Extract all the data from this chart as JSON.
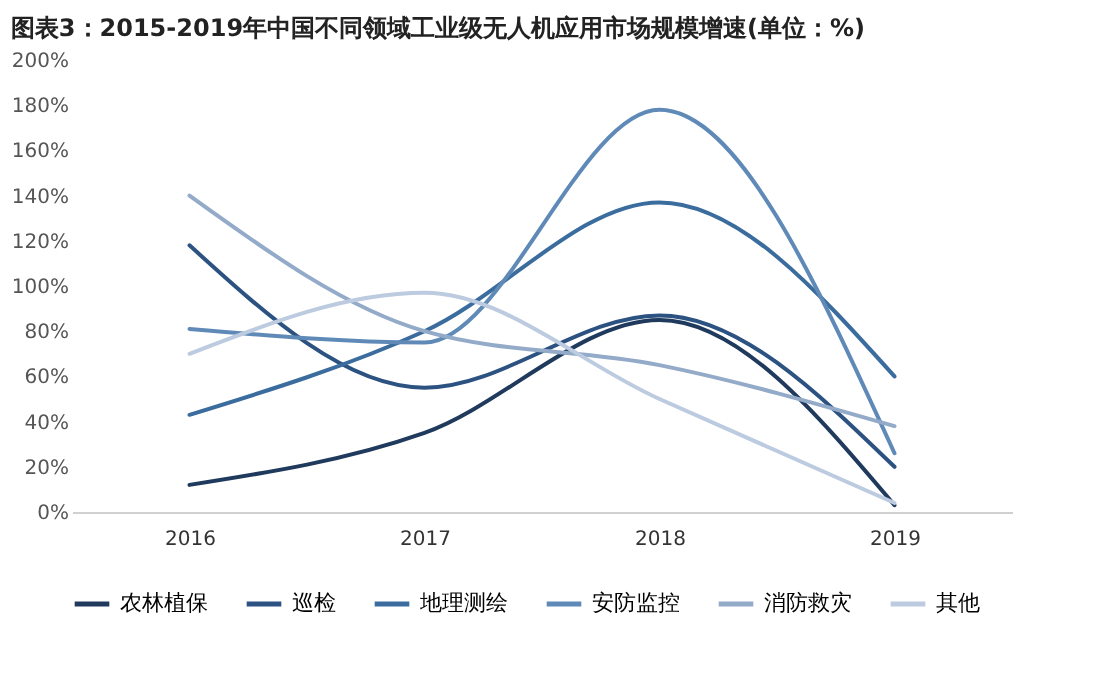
{
  "chart_data": {
    "type": "line",
    "title": "图表3：2015-2019年中国不同领域工业级无人机应用市场规模增速(单位：%)",
    "categories": [
      "2016",
      "2017",
      "2018",
      "2019"
    ],
    "series": [
      {
        "name": "农林植保",
        "color": "#1f3a5c",
        "values": [
          12,
          35,
          85,
          3
        ]
      },
      {
        "name": "巡检",
        "color": "#2c5282",
        "values": [
          118,
          55,
          87,
          20
        ]
      },
      {
        "name": "地理测绘",
        "color": "#3b6c9e",
        "values": [
          43,
          80,
          137,
          60
        ]
      },
      {
        "name": "安防监控",
        "color": "#5f8ab8",
        "values": [
          81,
          75,
          178,
          26
        ]
      },
      {
        "name": "消防救灾",
        "color": "#93abc9",
        "values": [
          140,
          80,
          65,
          38
        ]
      },
      {
        "name": "其他",
        "color": "#bccbdf",
        "values": [
          70,
          97,
          50,
          4
        ]
      }
    ],
    "ylim": [
      0,
      200
    ],
    "yticks": [
      {
        "value": 0,
        "label": "0%"
      },
      {
        "value": 20,
        "label": "20%"
      },
      {
        "value": 40,
        "label": "40%"
      },
      {
        "value": 60,
        "label": "60%"
      },
      {
        "value": 80,
        "label": "80%"
      },
      {
        "value": 100,
        "label": "100%"
      },
      {
        "value": 120,
        "label": "120%"
      },
      {
        "value": 140,
        "label": "140%"
      },
      {
        "value": 160,
        "label": "160%"
      },
      {
        "value": 180,
        "label": "180%"
      },
      {
        "value": 200,
        "label": "200%"
      }
    ],
    "grid": false,
    "legend": "bottom",
    "marker": "none",
    "line_style": "solid"
  }
}
